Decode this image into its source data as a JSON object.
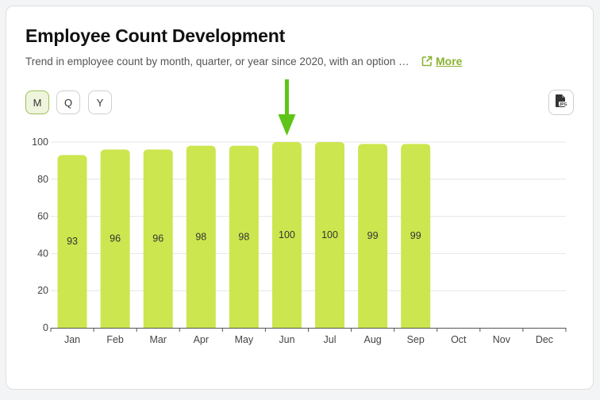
{
  "header": {
    "title": "Employee Count Development",
    "subtitle": "Trend in employee count by month, quarter, or year since 2020, with an option …",
    "more_label": "More"
  },
  "period_toggle": {
    "options": [
      "M",
      "Q",
      "Y"
    ],
    "selected": "M"
  },
  "export": {
    "icon": "jpg-file-icon",
    "badge": "JPG"
  },
  "colors": {
    "bar": "#cce64f",
    "accent": "#8bb232",
    "arrow": "#5ec417",
    "grid": "#e6e6e6"
  },
  "chart_data": {
    "type": "bar",
    "categories": [
      "Jan",
      "Feb",
      "Mar",
      "Apr",
      "May",
      "Jun",
      "Jul",
      "Aug",
      "Sep",
      "Oct",
      "Nov",
      "Dec"
    ],
    "values": [
      93,
      96,
      96,
      98,
      98,
      100,
      100,
      99,
      99,
      null,
      null,
      null
    ],
    "yticks": [
      0,
      20,
      40,
      60,
      80,
      100
    ],
    "ylim": [
      0,
      100
    ],
    "grid": true,
    "data_labels": true,
    "highlight_category": "Jun",
    "highlight_marker": "down-arrow"
  }
}
